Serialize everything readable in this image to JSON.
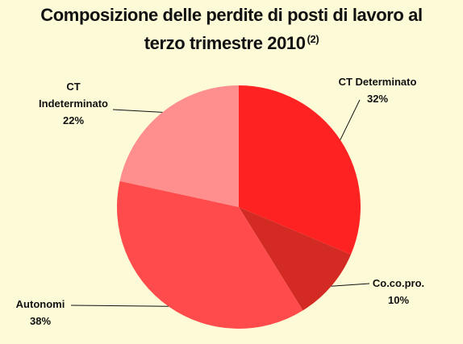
{
  "chart_data": {
    "type": "pie",
    "title_line1": "Composizione delle perdite di posti di lavoro al",
    "title_line2": "terzo trimestre 2010",
    "title_note": "(2)",
    "slices": [
      {
        "label_lines": [
          "CT Determinato"
        ],
        "value": 32,
        "value_label": "32%",
        "color": "#FF2222"
      },
      {
        "label_lines": [
          "Co.co.pro."
        ],
        "value": 10,
        "value_label": "10%",
        "color": "#D42A24"
      },
      {
        "label_lines": [
          "Autonomi"
        ],
        "value": 38,
        "value_label": "38%",
        "color": "#FF4B4B"
      },
      {
        "label_lines": [
          "CT",
          "Indeterminato"
        ],
        "value": 22,
        "value_label": "22%",
        "color": "#FF8E8E"
      }
    ],
    "start_angle_deg": 0,
    "direction": "clockwise",
    "legend": "none"
  },
  "colors": {
    "background": "#FCFAD7",
    "leader_line": "#111111"
  }
}
